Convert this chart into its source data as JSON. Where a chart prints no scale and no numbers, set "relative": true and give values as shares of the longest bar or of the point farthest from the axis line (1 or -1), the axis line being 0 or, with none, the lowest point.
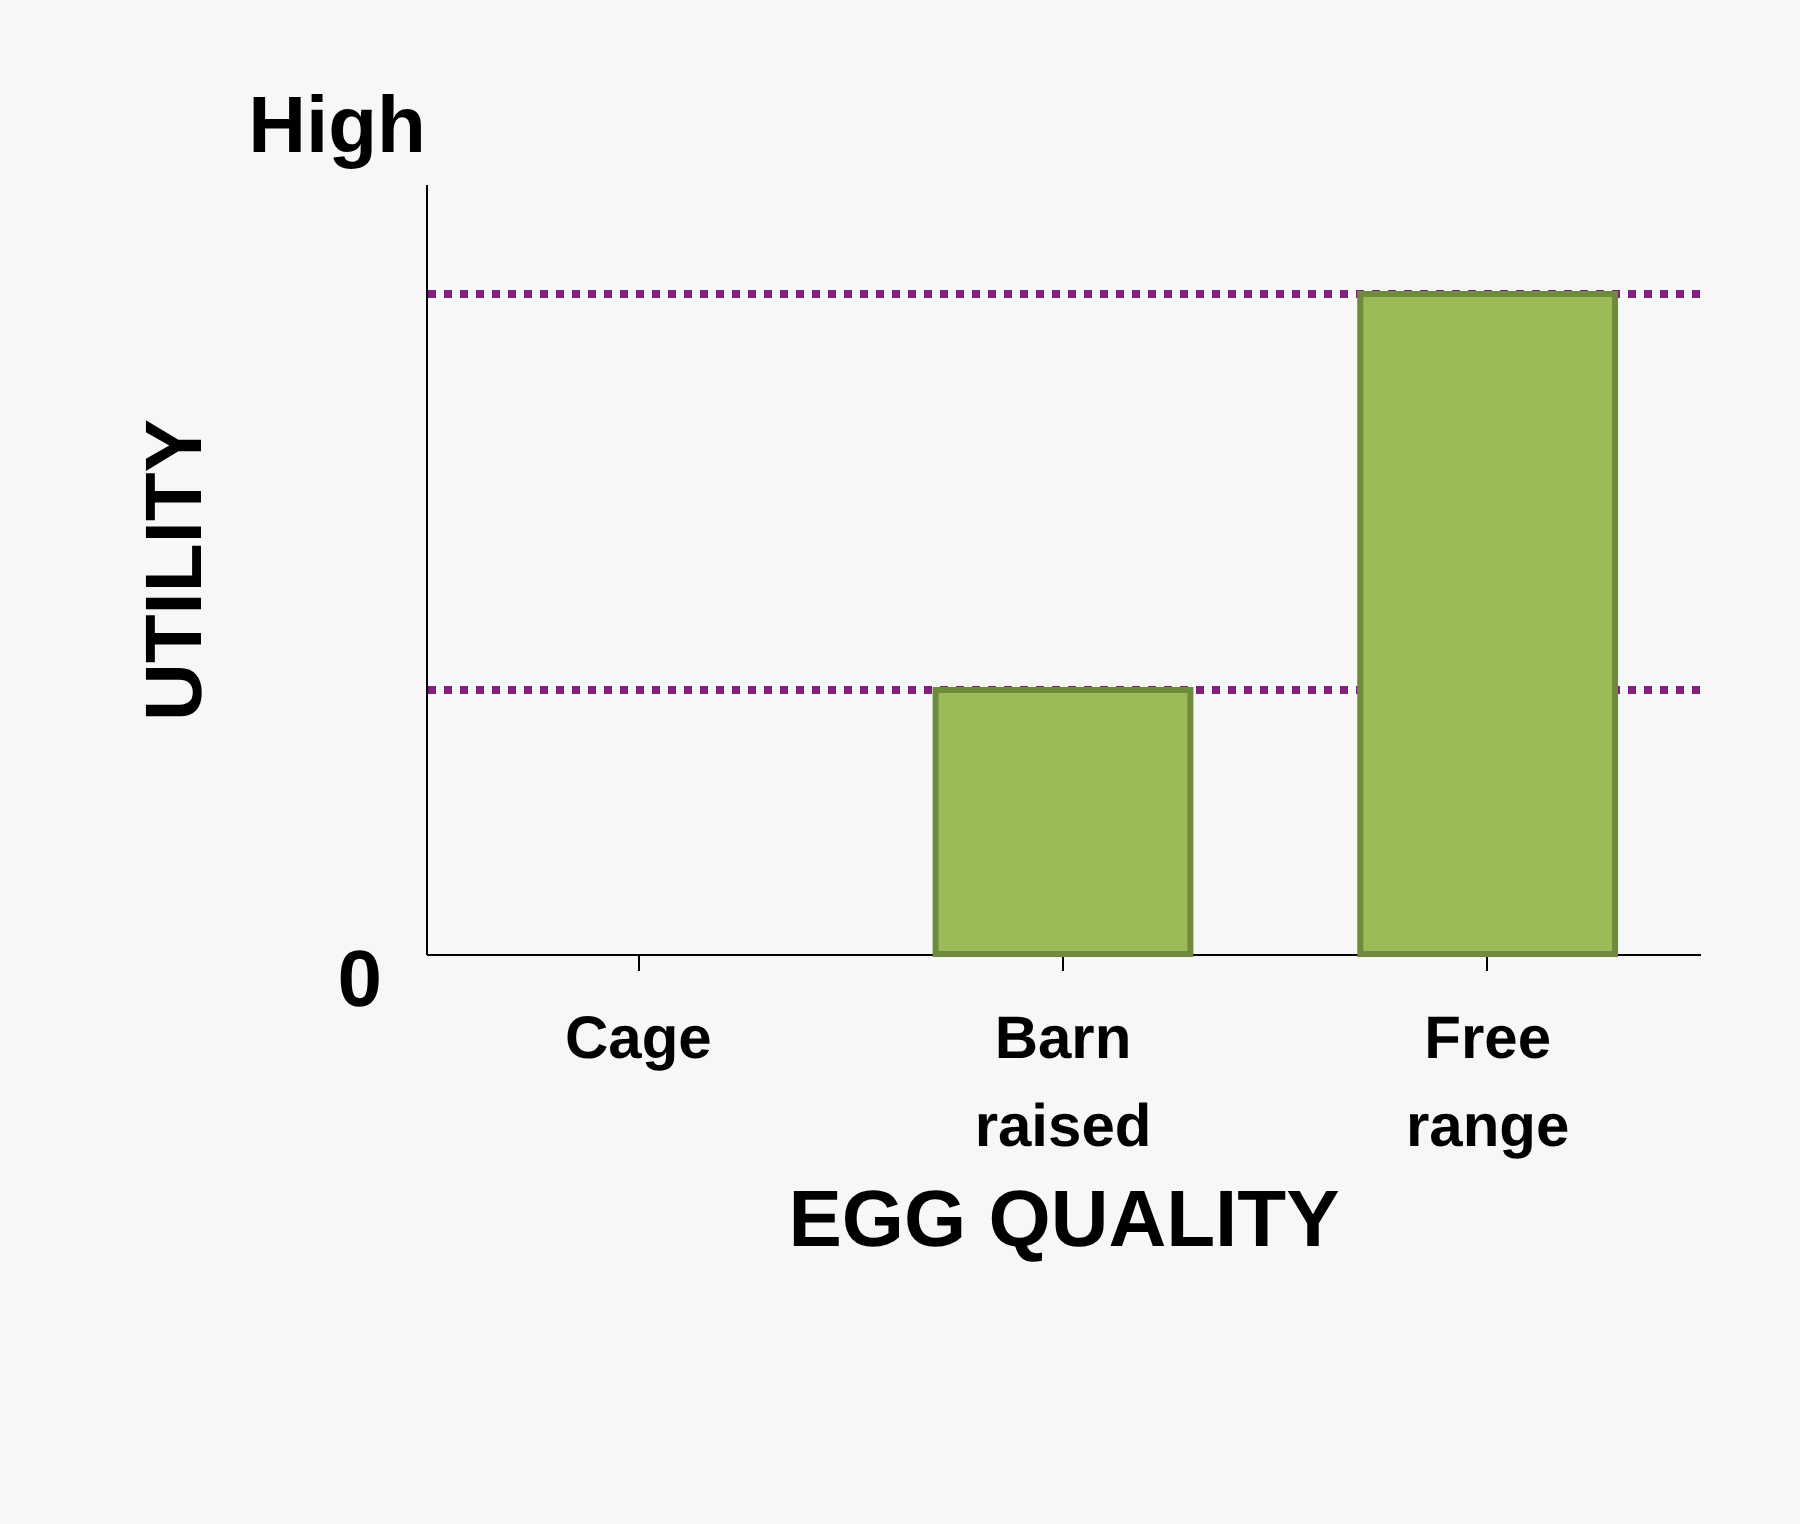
{
  "chart_data": {
    "type": "bar",
    "relative": true,
    "xlabel": "EGG QUALITY",
    "ylabel": "UTILITY",
    "categories": [
      "Cage",
      "Barn raised",
      "Free range"
    ],
    "values": [
      0,
      0.4,
      1
    ],
    "color": "#9bbb59",
    "ref_lines": [
      {
        "axis": "y",
        "value": 0.4,
        "color": "#7f1f7f",
        "line_style": "dotted"
      },
      {
        "axis": "y",
        "value": 1,
        "color": "#7f1f7f",
        "line_style": "dotted"
      }
    ],
    "annotations": [
      "High",
      "0"
    ],
    "grid": false
  }
}
